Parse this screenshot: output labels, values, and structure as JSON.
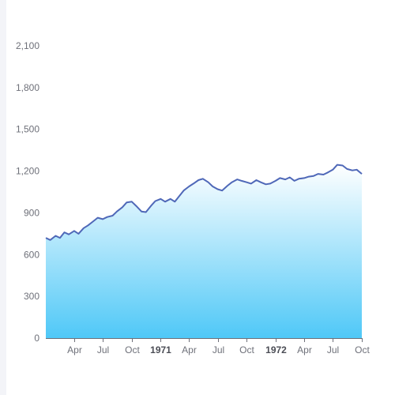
{
  "chart_data": {
    "type": "area",
    "title": "",
    "xlabel": "",
    "ylabel": "",
    "ylim": [
      0,
      2100
    ],
    "yticks": [
      0,
      300,
      600,
      900,
      1200,
      1500,
      1800,
      2100
    ],
    "ytick_labels": [
      "0",
      "300",
      "600",
      "900",
      "1,200",
      "1,500",
      "1,800",
      "2,100"
    ],
    "x_range": [
      "1970-01-01",
      "1972-10-01"
    ],
    "xticks": [
      {
        "date": "1970-04-01",
        "label": "Apr",
        "year_boundary": false
      },
      {
        "date": "1970-07-01",
        "label": "Jul",
        "year_boundary": false
      },
      {
        "date": "1970-10-01",
        "label": "Oct",
        "year_boundary": false
      },
      {
        "date": "1971-01-01",
        "label": "1971",
        "year_boundary": true
      },
      {
        "date": "1971-04-01",
        "label": "Apr",
        "year_boundary": false
      },
      {
        "date": "1971-07-01",
        "label": "Jul",
        "year_boundary": false
      },
      {
        "date": "1971-10-01",
        "label": "Oct",
        "year_boundary": false
      },
      {
        "date": "1972-01-01",
        "label": "1972",
        "year_boundary": true
      },
      {
        "date": "1972-04-01",
        "label": "Apr",
        "year_boundary": false
      },
      {
        "date": "1972-07-01",
        "label": "Jul",
        "year_boundary": false
      },
      {
        "date": "1972-10-01",
        "label": "Oct",
        "year_boundary": false
      }
    ],
    "grid": false,
    "legend": "none",
    "colors": {
      "line": "#4f68b8",
      "area_top": "#ffffff",
      "area_bottom": "#4fc8f7",
      "axis": "#6e7079",
      "year_label": "#4b4d55"
    },
    "series": [
      {
        "x": [
          "1970-01-01",
          "1970-01-15",
          "1970-02-01",
          "1970-02-15",
          "1970-03-01",
          "1970-03-15",
          "1970-04-01",
          "1970-04-15",
          "1970-05-01",
          "1970-05-15",
          "1970-06-01",
          "1970-06-15",
          "1970-07-01",
          "1970-07-15",
          "1970-08-01",
          "1970-08-15",
          "1970-09-01",
          "1970-09-15",
          "1970-10-01",
          "1970-10-15",
          "1970-11-01",
          "1970-11-15",
          "1970-12-01",
          "1970-12-15",
          "1971-01-01",
          "1971-01-15",
          "1971-02-01",
          "1971-02-15",
          "1971-03-01",
          "1971-03-15",
          "1971-04-01",
          "1971-04-15",
          "1971-05-01",
          "1971-05-15",
          "1971-06-01",
          "1971-06-15",
          "1971-07-01",
          "1971-07-15",
          "1971-08-01",
          "1971-08-15",
          "1971-09-01",
          "1971-09-15",
          "1971-10-01",
          "1971-10-15",
          "1971-11-01",
          "1971-11-15",
          "1971-12-01",
          "1971-12-15",
          "1972-01-01",
          "1972-01-15",
          "1972-02-01",
          "1972-02-15",
          "1972-03-01",
          "1972-03-15",
          "1972-04-01",
          "1972-04-15",
          "1972-05-01",
          "1972-05-15",
          "1972-06-01",
          "1972-06-15",
          "1972-07-01",
          "1972-07-15",
          "1972-08-01",
          "1972-08-15",
          "1972-09-01",
          "1972-09-15",
          "1972-10-01"
        ],
        "values": [
          720,
          705,
          735,
          720,
          760,
          745,
          770,
          750,
          790,
          810,
          840,
          865,
          855,
          870,
          880,
          910,
          940,
          975,
          980,
          950,
          910,
          905,
          950,
          985,
          1000,
          980,
          1000,
          980,
          1020,
          1060,
          1090,
          1110,
          1135,
          1145,
          1120,
          1090,
          1070,
          1060,
          1095,
          1120,
          1140,
          1130,
          1120,
          1110,
          1135,
          1120,
          1105,
          1110,
          1130,
          1150,
          1140,
          1155,
          1130,
          1145,
          1150,
          1160,
          1165,
          1180,
          1175,
          1190,
          1210,
          1245,
          1240,
          1215,
          1205,
          1210,
          1180
        ]
      }
    ]
  }
}
